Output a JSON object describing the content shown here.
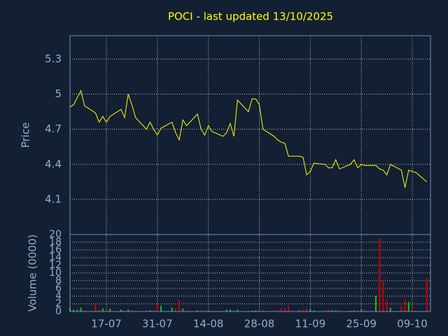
{
  "chart_data": [
    {
      "type": "line",
      "title": "POCI - last updated 13/10/2025",
      "y_label": "Price",
      "color": "#ffff00",
      "x": [
        "07-07",
        "08-07",
        "09-07",
        "10-07",
        "11-07",
        "14-07",
        "15-07",
        "16-07",
        "17-07",
        "18-07",
        "21-07",
        "22-07",
        "23-07",
        "24-07",
        "25-07",
        "28-07",
        "29-07",
        "30-07",
        "31-07",
        "01-08",
        "04-08",
        "05-08",
        "06-08",
        "07-08",
        "08-08",
        "11-08",
        "12-08",
        "13-08",
        "14-08",
        "15-08",
        "18-08",
        "19-08",
        "20-08",
        "21-08",
        "22-08",
        "25-08",
        "26-08",
        "27-08",
        "28-08",
        "29-08",
        "01-09",
        "02-09",
        "03-09",
        "04-09",
        "05-09",
        "08-09",
        "09-09",
        "10-09",
        "11-09",
        "12-09",
        "15-09",
        "16-09",
        "17-09",
        "18-09",
        "19-09",
        "22-09",
        "23-09",
        "24-09",
        "25-09",
        "26-09",
        "29-09",
        "30-09",
        "01-10",
        "02-10",
        "03-10",
        "06-10",
        "07-10",
        "08-10",
        "09-10",
        "10-10",
        "13-10"
      ],
      "values": [
        4.89,
        4.91,
        4.97,
        5.03,
        4.9,
        4.84,
        4.76,
        4.81,
        4.76,
        4.81,
        4.87,
        4.8,
        5.0,
        4.91,
        4.8,
        4.7,
        4.76,
        4.7,
        4.65,
        4.71,
        4.76,
        4.67,
        4.61,
        4.78,
        4.73,
        4.83,
        4.7,
        4.65,
        4.73,
        4.68,
        4.64,
        4.67,
        4.75,
        4.64,
        4.95,
        4.85,
        4.96,
        4.96,
        4.91,
        4.7,
        4.64,
        4.61,
        4.59,
        4.58,
        4.47,
        4.47,
        4.46,
        4.31,
        4.34,
        4.41,
        4.4,
        4.37,
        4.37,
        4.44,
        4.36,
        4.4,
        4.44,
        4.37,
        4.4,
        4.39,
        4.39,
        4.36,
        4.35,
        4.31,
        4.4,
        4.35,
        4.2,
        4.35,
        4.34,
        4.33,
        4.25
      ],
      "xlim": [
        "07-07",
        "14-10"
      ],
      "xticks": [
        "17-07",
        "31-07",
        "14-08",
        "28-08",
        "11-09",
        "25-09",
        "09-10"
      ],
      "ylim": [
        3.8,
        5.5
      ],
      "yticks": [
        4.1,
        4.4,
        4.7,
        5,
        5.3
      ],
      "grid": true
    },
    {
      "type": "bar",
      "y_label": "Volume (0000)",
      "up_color": "#00cc00",
      "down_color": "#cc0000",
      "values": [
        1,
        0.5,
        0.5,
        1,
        0.3,
        2,
        0.5,
        0.8,
        0.5,
        0.8,
        0.5,
        0.3,
        0.5,
        0.4,
        0.3,
        0.3,
        0.3,
        0.3,
        2,
        1.5,
        1,
        0.8,
        3,
        0.8,
        0.3,
        0.3,
        0.3,
        0.3,
        0.3,
        0.2,
        0.2,
        0.5,
        0.5,
        0.3,
        0.5,
        0.2,
        0.2,
        0.3,
        0.5,
        0.5,
        0.3,
        0.5,
        0.8,
        0.8,
        1.5,
        0.3,
        0.5,
        0.8,
        0.5,
        0.3,
        0.3,
        0.5,
        0.3,
        0.3,
        0.3,
        0.2,
        0.3,
        0.3,
        0.5,
        0.5,
        4,
        19,
        8,
        3,
        1,
        1.5,
        3,
        2.5,
        1,
        0.3,
        8.5
      ],
      "ylim": [
        0,
        20
      ],
      "yticks": [
        0,
        2,
        4,
        6,
        8,
        10,
        12,
        14,
        16,
        18,
        20
      ],
      "grid": true
    }
  ]
}
